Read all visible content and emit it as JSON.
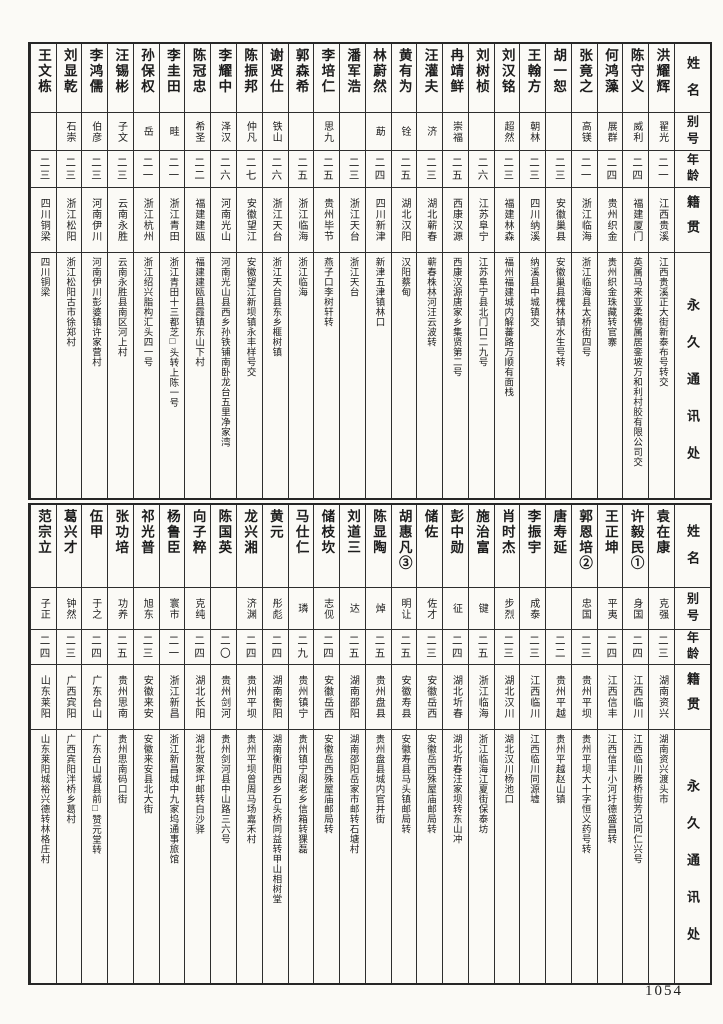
{
  "page": {
    "number": "1054"
  },
  "colors": {
    "paper": "#fbfaf6",
    "ink": "#1c1c1c",
    "rule": "#2e2e2e"
  },
  "headers": {
    "name": "姓名",
    "alias": "别号",
    "age": "年龄",
    "native": "籍贯",
    "address": "永久通讯处"
  },
  "table1": {
    "people": [
      {
        "name": "洪耀辉",
        "alias": "翟光",
        "age": "二一",
        "native": "江西贵溪",
        "address": "江西贵溪正大街新泰布号转交"
      },
      {
        "name": "陈守义",
        "alias": "威利",
        "age": "二四",
        "native": "福建厦门",
        "address": "英属马来亚柔佛属居銮坡万和利村胶有限公司交"
      },
      {
        "name": "何鸿藻",
        "alias": "展群",
        "age": "二四",
        "native": "贵州织金",
        "address": "贵州织金珠藏转官寨"
      },
      {
        "name": "张竟之",
        "alias": "高镁",
        "age": "二一",
        "native": "浙江临海",
        "address": "浙江临海县太桥街四号"
      },
      {
        "name": "胡一恕",
        "alias": "",
        "age": "二三",
        "native": "安徽巢县",
        "address": "安徽巢县槐林镇水生号转"
      },
      {
        "name": "王翰方",
        "alias": "朝林",
        "age": "二三",
        "native": "四川纳溪",
        "address": "纳溪县中城镇交"
      },
      {
        "name": "刘汉铭",
        "alias": "超然",
        "age": "二三",
        "native": "福建林森",
        "address": "福州福建城内解蕃路万顺有面栈"
      },
      {
        "name": "刘树桢",
        "alias": "",
        "age": "二六",
        "native": "江苏阜宁",
        "address": "江苏阜宁县北门口二九号"
      },
      {
        "name": "冉靖鲜",
        "alias": "崇福",
        "age": "二五",
        "native": "西康汉源",
        "address": "西康汉源唐家乡集贤第二号"
      },
      {
        "name": "汪灌夫",
        "alias": "济",
        "age": "二三",
        "native": "湖北蕲春",
        "address": "蕲春株林河汪云波转"
      },
      {
        "name": "黄有为",
        "alias": "铨",
        "age": "二五",
        "native": "湖北汉阳",
        "address": "汉阳蔡甸"
      },
      {
        "name": "林蔚然",
        "alias": "莇",
        "age": "二四",
        "native": "四川新津",
        "address": "新津五津镇林口"
      },
      {
        "name": "潘军浩",
        "alias": "",
        "age": "二三",
        "native": "浙江天台",
        "address": "浙江天台"
      },
      {
        "name": "李培仁",
        "alias": "思九",
        "age": "二五",
        "native": "贵州毕节",
        "address": "燕子口李树轩转"
      },
      {
        "name": "郭森希",
        "alias": "",
        "age": "二五",
        "native": "浙江临海",
        "address": "浙江临海"
      },
      {
        "name": "谢贤仕",
        "alias": "铁山",
        "age": "二六",
        "native": "浙江天台",
        "address": "浙江天台县东乡榧树镇"
      },
      {
        "name": "陈振邦",
        "alias": "仲凡",
        "age": "二七",
        "native": "安徽望江",
        "address": "安徽望江新坝镇永丰样号交"
      },
      {
        "name": "李耀中",
        "alias": "泽汉",
        "age": "二六",
        "native": "河南光山",
        "address": "河南光山县西乡孙铁铺南卧龙台五里净家湾"
      },
      {
        "name": "陈冠忠",
        "alias": "希圣",
        "age": "二二",
        "native": "福建建瓯",
        "address": "福建建瓯县霞镇东山下村"
      },
      {
        "name": "李圭田",
        "alias": "畦",
        "age": "二一",
        "native": "浙江青田",
        "address": "浙江青田十三都芝□头转上陈一号"
      },
      {
        "name": "孙保权",
        "alias": "岳",
        "age": "二一",
        "native": "浙江杭州",
        "address": "浙江绍兴脂构汇头四一号"
      },
      {
        "name": "汪锡彬",
        "alias": "子文",
        "age": "二三",
        "native": "云南永胜",
        "address": "云南永胜县南区河上村"
      },
      {
        "name": "李鸿儒",
        "alias": "伯彦",
        "age": "二三",
        "native": "河南伊川",
        "address": "河南伊川彭婆镇许家营村"
      },
      {
        "name": "刘显乾",
        "alias": "石崇",
        "age": "二三",
        "native": "浙江松阳",
        "address": "浙江松阳古市徐郑村"
      },
      {
        "name": "王文栋",
        "alias": "",
        "age": "二三",
        "native": "四川铜梁",
        "address": "四川铜梁"
      }
    ]
  },
  "table2": {
    "people": [
      {
        "name": "袁在康",
        "alias": "克强",
        "age": "二三",
        "native": "湖南资兴",
        "address": "湖南资兴渡头市"
      },
      {
        "name": "许毅民①",
        "alias": "身国",
        "age": "二四",
        "native": "江西临川",
        "address": "江西临川腾桥街芳记同仁兴号"
      },
      {
        "name": "王正坤",
        "alias": "平夷",
        "age": "二四",
        "native": "江西信丰",
        "address": "江西信丰小河圩德盛昌转"
      },
      {
        "name": "郭恩培②",
        "alias": "忠国",
        "age": "二三",
        "native": "贵州平坝",
        "address": "贵州平坝大十字恒义药号转"
      },
      {
        "name": "唐寿延",
        "alias": "",
        "age": "二二",
        "native": "贵州平越",
        "address": "贵州平越赵山镇"
      },
      {
        "name": "李振宇",
        "alias": "成泰",
        "age": "二三",
        "native": "江西临川",
        "address": "江西临川同源墟"
      },
      {
        "name": "肖时杰",
        "alias": "步烈",
        "age": "二三",
        "native": "湖北汉川",
        "address": "湖北汉川杨池口"
      },
      {
        "name": "施治富",
        "alias": "键",
        "age": "二五",
        "native": "浙江临海",
        "address": "浙江临海江夏街保泰坊"
      },
      {
        "name": "彭中勋",
        "alias": "征",
        "age": "二四",
        "native": "湖北圻春",
        "address": "湖北圻春汪家坝转东山冲"
      },
      {
        "name": "储佐",
        "alias": "佐才",
        "age": "二三",
        "native": "安徽岳西",
        "address": "安徽岳西殊屋庙邮局转"
      },
      {
        "name": "胡惠凡③",
        "alias": "明让",
        "age": "二五",
        "native": "安徽寿县",
        "address": "安徽寿县马头镇邮局转"
      },
      {
        "name": "陈显陶",
        "alias": "焯",
        "age": "二五",
        "native": "贵州盘县",
        "address": "贵州盘县城内官井街"
      },
      {
        "name": "刘道三",
        "alias": "达",
        "age": "二五",
        "native": "湖南邵阳",
        "address": "湖南邵阳岳家市邮转石塘村"
      },
      {
        "name": "储枝坎",
        "alias": "志伣",
        "age": "二四",
        "native": "安徽岳西",
        "address": "安徽岳西殊屋庙邮局转"
      },
      {
        "name": "马仕仁",
        "alias": "璘",
        "age": "二九",
        "native": "贵州镇宁",
        "address": "贵州镇宁阁老乡信箱转猓磊"
      },
      {
        "name": "黄元",
        "alias": "彤彪",
        "age": "二四",
        "native": "湖南衡阳",
        "address": "湖南衡阳西乡石头桥同益转甲山相树堂"
      },
      {
        "name": "龙兴湘",
        "alias": "济渊",
        "age": "二四",
        "native": "贵州平坝",
        "address": "贵州平坝曾周马场嘉禾村"
      },
      {
        "name": "陈国英",
        "alias": "",
        "age": "二〇",
        "native": "贵州剑河",
        "address": "贵州剑河县中山路三六号"
      },
      {
        "name": "向子粹",
        "alias": "克纯",
        "age": "二四",
        "native": "湖北长阳",
        "address": "湖北贺家坪邮转白沙驿"
      },
      {
        "name": "杨鲁臣",
        "alias": "寰市",
        "age": "二一",
        "native": "浙江新昌",
        "address": "浙江新昌城中九家坞通事旅馆"
      },
      {
        "name": "祁光普",
        "alias": "旭东",
        "age": "二三",
        "native": "安徽来安",
        "address": "安徽来安县北大街"
      },
      {
        "name": "张功培",
        "alias": "功养",
        "age": "二五",
        "native": "贵州思南",
        "address": "贵州思南码口街"
      },
      {
        "name": "伍甲",
        "alias": "于之",
        "age": "二四",
        "native": "广东台山",
        "address": "广东台山城县前□赞元堂转"
      },
      {
        "name": "葛兴才",
        "alias": "钟然",
        "age": "二三",
        "native": "广西宾阳",
        "address": "广西宾阳泮桥乡葛村"
      },
      {
        "name": "范宗立",
        "alias": "子正",
        "age": "二四",
        "native": "山东莱阳",
        "address": "山东莱阳城裕兴德转林格庄村"
      }
    ]
  }
}
